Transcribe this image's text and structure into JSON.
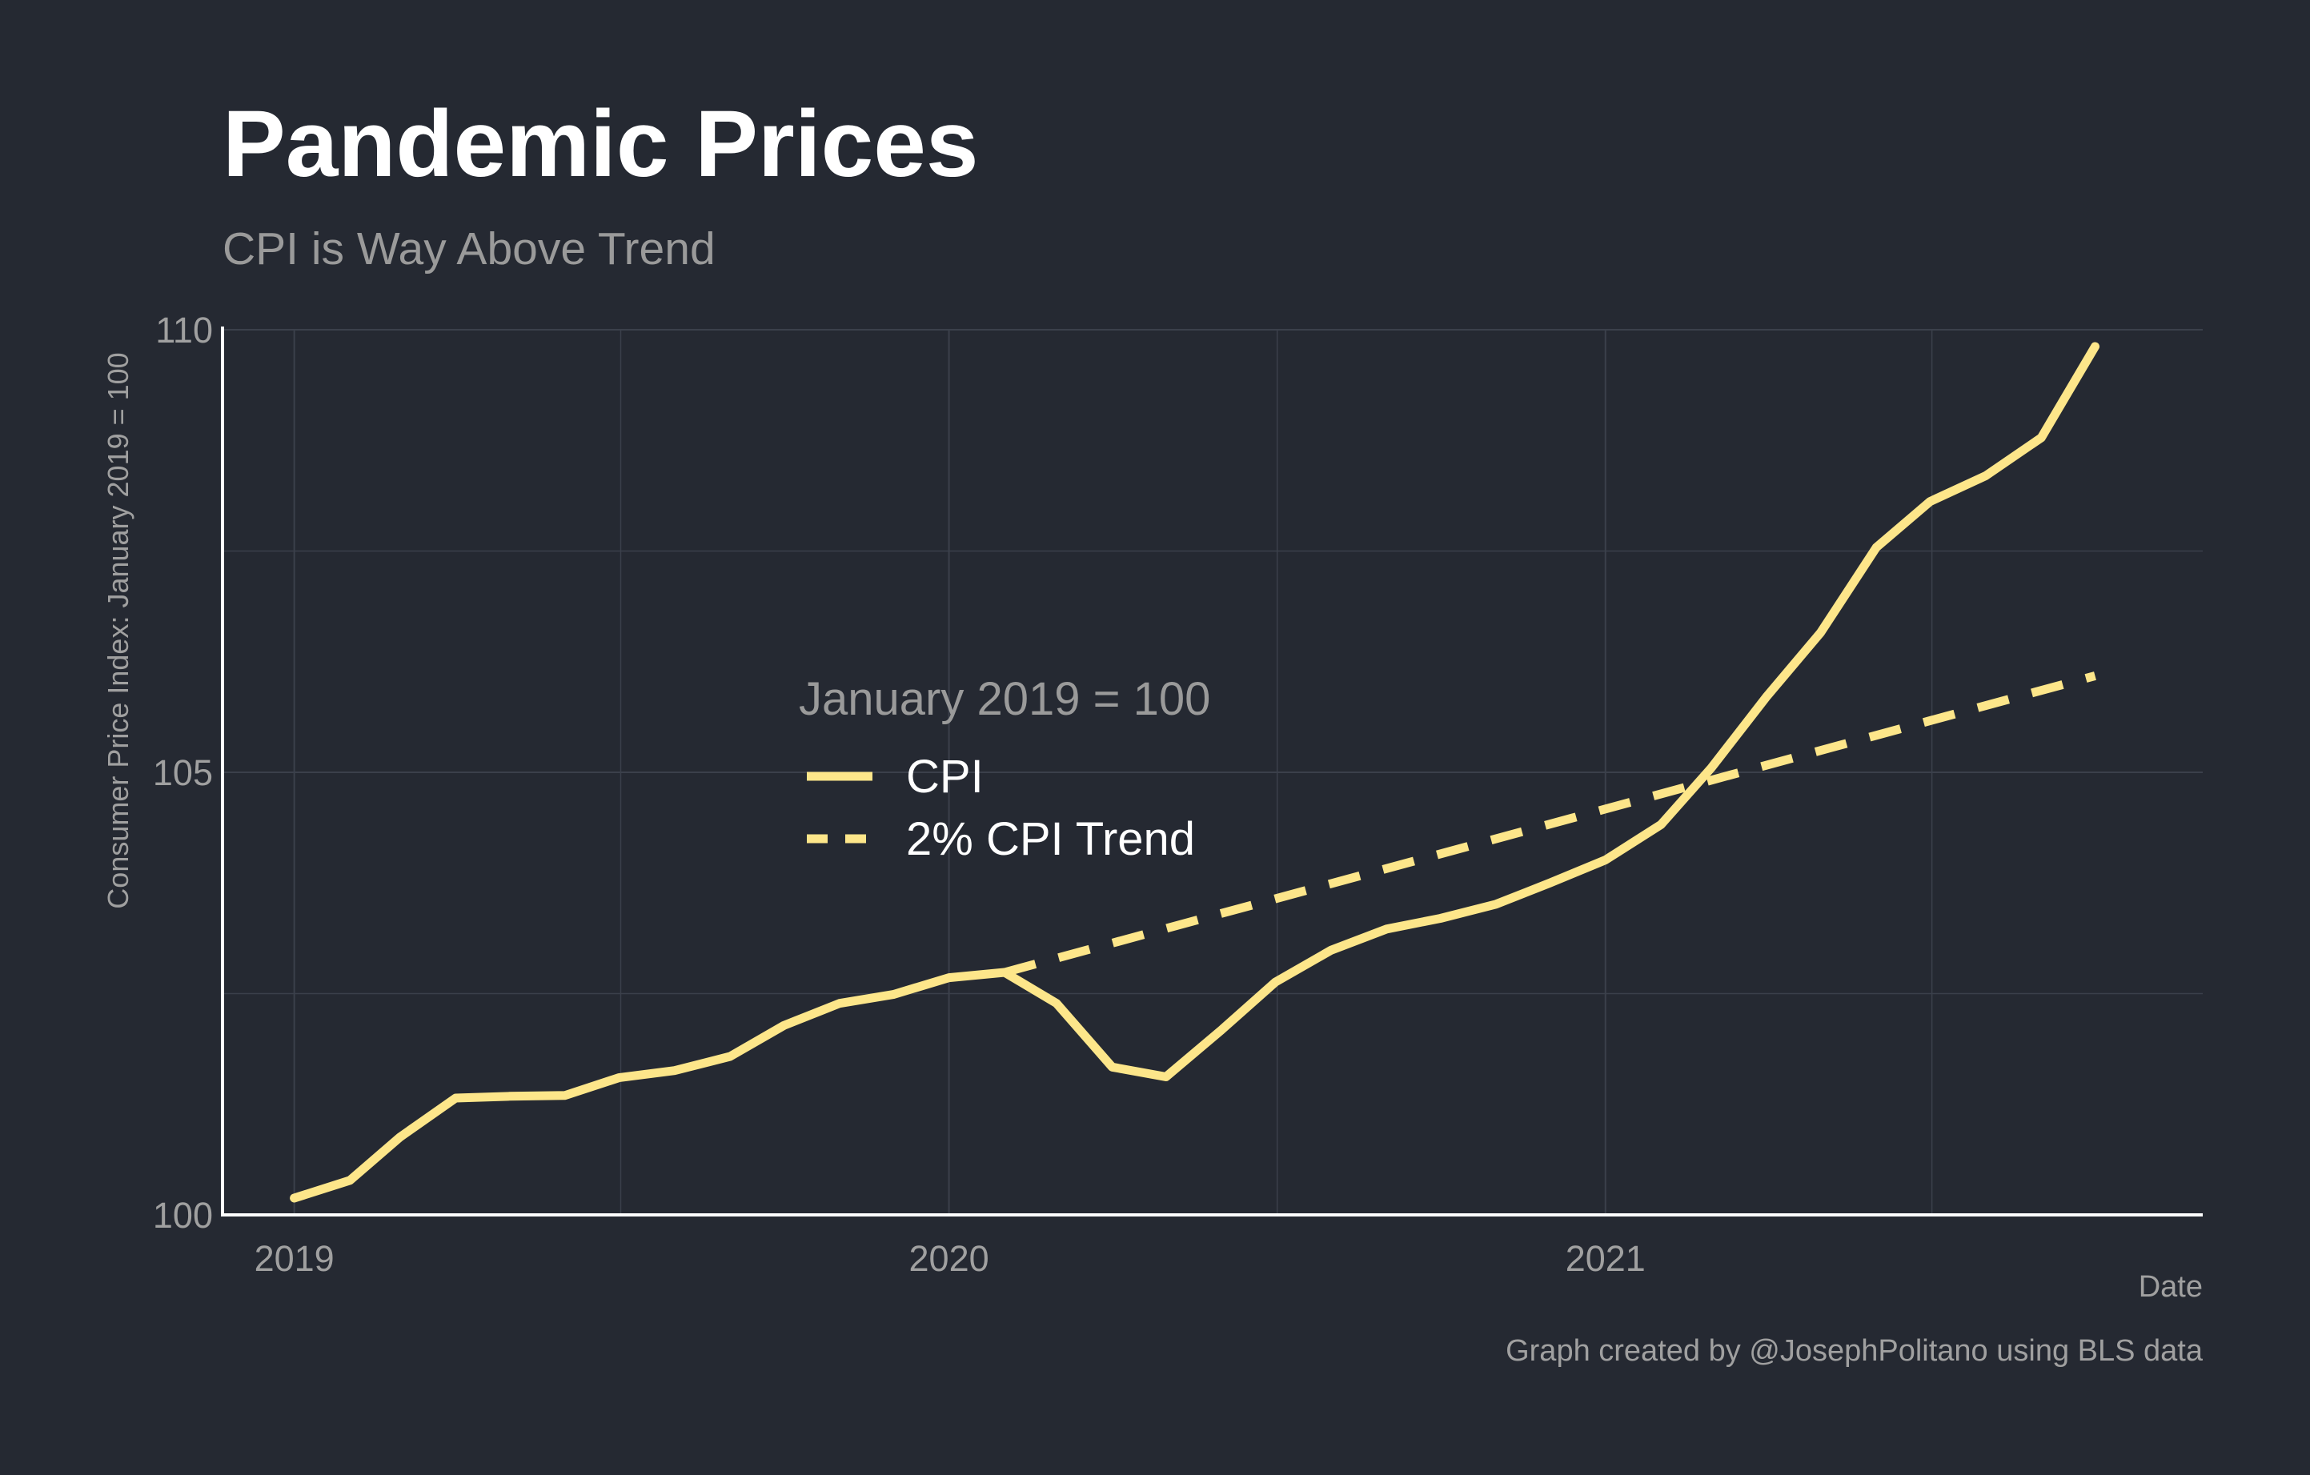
{
  "chart_data": {
    "type": "line",
    "title": "Pandemic Prices",
    "subtitle": "CPI is Way Above Trend",
    "xlabel": "Date",
    "ylabel": "Consumer Price Index: January 2019 = 100",
    "caption": "Graph created by @JosephPolitano using BLS data",
    "xlim": [
      "2018-11-22",
      "2021-11-30"
    ],
    "ylim": [
      100,
      110
    ],
    "x_ticks": [
      "2019-01-01",
      "2020-01-01",
      "2021-01-01"
    ],
    "x_tick_labels": [
      "2019",
      "2020",
      "2021"
    ],
    "y_ticks": [
      100,
      105,
      110
    ],
    "y_tick_labels": [
      "100",
      "105",
      "110"
    ],
    "grid": true,
    "legend": {
      "title": "January 2019 = 100",
      "placement": "center",
      "entries": [
        "CPI",
        "2% CPI Trend"
      ]
    },
    "colors": {
      "background": "#252932",
      "series": "#fde68a",
      "grid": "#3b404b",
      "axis": "#ffffff"
    },
    "series": [
      {
        "name": "CPI",
        "style": "solid",
        "x": [
          "2019-01-01",
          "2019-02-01",
          "2019-03-01",
          "2019-04-01",
          "2019-05-01",
          "2019-06-01",
          "2019-07-01",
          "2019-08-01",
          "2019-09-01",
          "2019-10-01",
          "2019-11-01",
          "2019-12-01",
          "2020-01-01",
          "2020-02-01",
          "2020-03-01",
          "2020-04-01",
          "2020-05-01",
          "2020-06-01",
          "2020-07-01",
          "2020-08-01",
          "2020-09-01",
          "2020-10-01",
          "2020-11-01",
          "2020-12-01",
          "2021-01-01",
          "2021-02-01",
          "2021-03-01",
          "2021-04-01",
          "2021-05-01",
          "2021-06-01",
          "2021-07-01",
          "2021-08-01",
          "2021-09-01",
          "2021-10-01"
        ],
        "values": [
          100.19,
          100.39,
          100.88,
          101.32,
          101.34,
          101.35,
          101.55,
          101.63,
          101.79,
          102.14,
          102.39,
          102.49,
          102.68,
          102.74,
          102.39,
          101.67,
          101.56,
          102.09,
          102.63,
          102.99,
          103.23,
          103.35,
          103.51,
          103.75,
          104.01,
          104.41,
          105.05,
          105.86,
          106.58,
          107.54,
          108.06,
          108.35,
          108.78,
          109.81
        ]
      },
      {
        "name": "2% CPI Trend",
        "style": "dashed",
        "x": [
          "2020-02-01",
          "2021-10-01"
        ],
        "values": [
          102.74,
          106.09
        ]
      }
    ]
  }
}
